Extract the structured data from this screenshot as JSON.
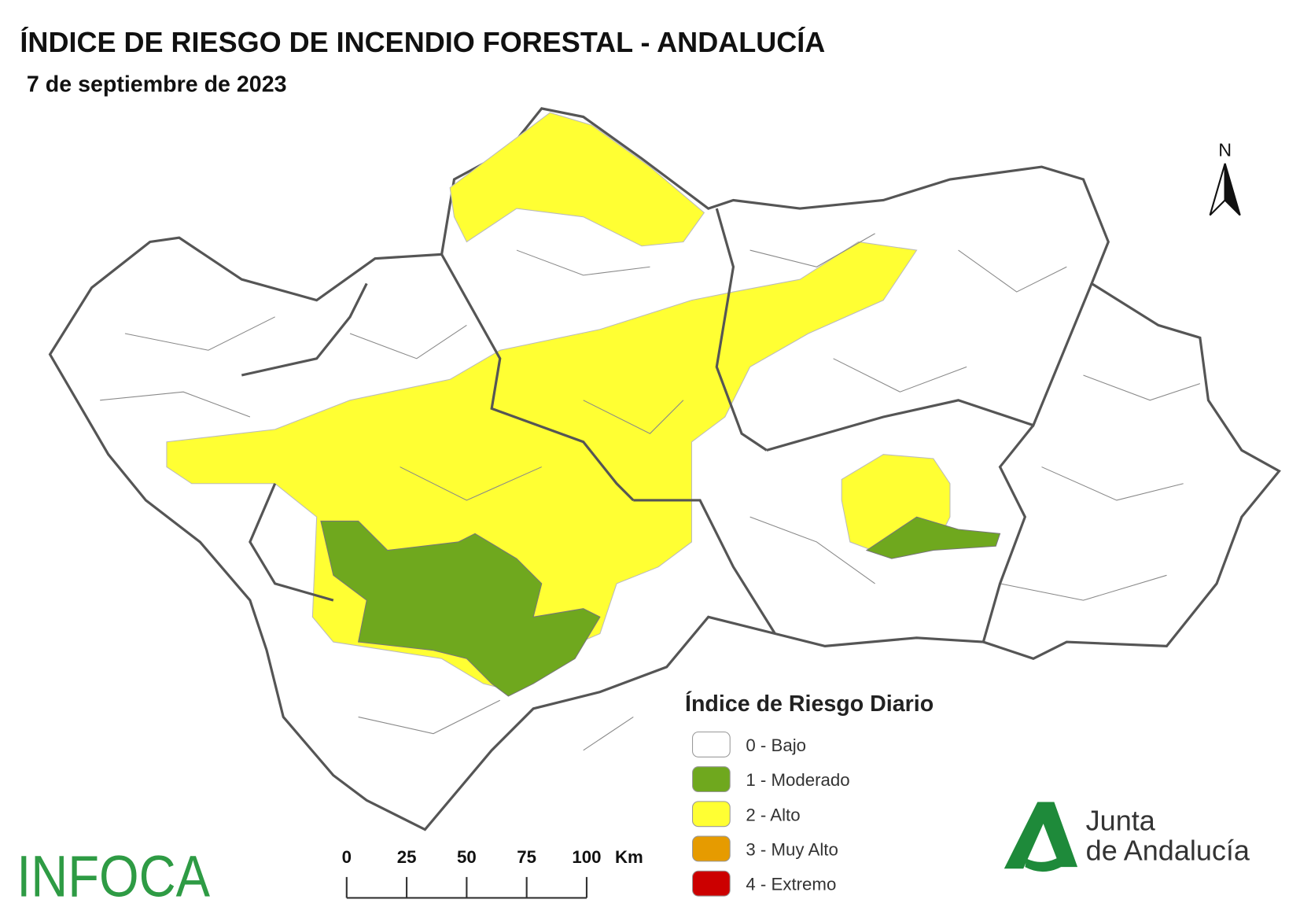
{
  "header": {
    "title": "ÍNDICE DE RIESGO DE INCENDIO FORESTAL - ANDALUCÍA",
    "subtitle": "7 de septiembre de 2023"
  },
  "north_arrow": {
    "label": "N"
  },
  "legend": {
    "title": "Índice de Riesgo Diario",
    "items": [
      {
        "label": "0 - Bajo",
        "color": "#ffffff"
      },
      {
        "label": "1 - Moderado",
        "color": "#6fa81e"
      },
      {
        "label": "2 - Alto",
        "color": "#ffff33"
      },
      {
        "label": "3 - Muy Alto",
        "color": "#e69b00"
      },
      {
        "label": "4 - Extremo",
        "color": "#cc0000"
      }
    ]
  },
  "scale_bar": {
    "ticks": [
      0,
      25,
      50,
      75,
      100
    ],
    "unit": "Km"
  },
  "logos": {
    "infoca": "INFOCA",
    "junta_line1": "Junta",
    "junta_line2": "de Andalucía"
  }
}
